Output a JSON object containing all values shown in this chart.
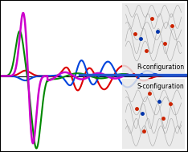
{
  "title": "",
  "background_color": "#ffffff",
  "border_color": "#000000",
  "divider_color": "#2255cc",
  "divider_y": 0.0,
  "r_config_label": "R-configuration",
  "s_config_label": "S-configuration",
  "label_color": "#000000",
  "label_fontsize": 5.5,
  "curves": {
    "magenta": {
      "color": "#cc00cc",
      "linewidth": 1.8
    },
    "green": {
      "color": "#008800",
      "linewidth": 1.5
    },
    "red": {
      "color": "#dd0000",
      "linewidth": 1.5
    },
    "blue": {
      "color": "#0044dd",
      "linewidth": 1.5
    }
  },
  "xlim": [
    0,
    10
  ],
  "ylim": [
    -1.5,
    1.5
  ]
}
